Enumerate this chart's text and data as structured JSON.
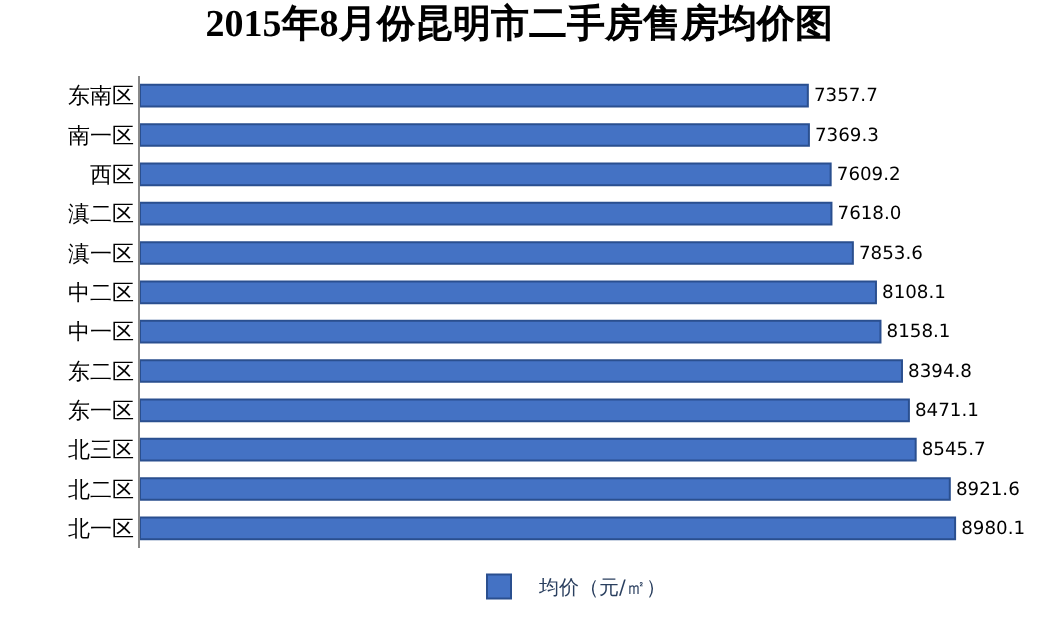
{
  "chart_data": {
    "type": "bar",
    "orientation": "horizontal",
    "title": "2015年8月份昆明市二手房售房均价图",
    "categories": [
      "东南区",
      "南一区",
      "西区",
      "滇二区",
      "滇一区",
      "中二区",
      "中一区",
      "东二区",
      "东一区",
      "北三区",
      "北二区",
      "北一区"
    ],
    "series": [
      {
        "name": "均价（元/㎡）",
        "color": "#4472c4",
        "values": [
          7357.7,
          7369.3,
          7609.2,
          7618.0,
          7853.6,
          8108.1,
          8158.1,
          8394.8,
          8471.1,
          8545.7,
          8921.6,
          8980.1
        ],
        "value_labels": [
          "7357.7",
          "7369.3",
          "7609.2",
          "7618.0",
          "7853.6",
          "8108.1",
          "8158.1",
          "8394.8",
          "8471.1",
          "8545.7",
          "8921.6",
          "8980.1"
        ]
      }
    ],
    "tick_labels": "y",
    "legend": "bottom"
  }
}
